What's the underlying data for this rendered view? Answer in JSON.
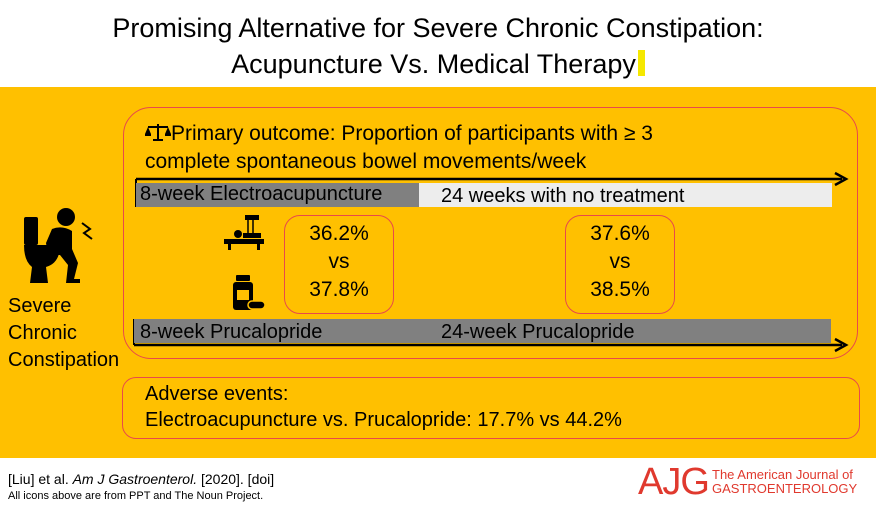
{
  "title": {
    "line1": "Promising Alternative for Severe Chronic Constipation:",
    "line2": "Acupuncture Vs. Medical Therapy"
  },
  "outcome": {
    "icon": "scales-icon",
    "line1": "Primary outcome: Proportion of participants with ≥ 3",
    "line2": "complete spontaneous bowel movements/week"
  },
  "electroacupuncture": {
    "label": "8-week Electroacupuncture",
    "rest": "24 weeks with no treatment"
  },
  "prucalopride": {
    "label": "8-week Prucalopride",
    "rest": "24-week Prucalopride"
  },
  "stats": [
    {
      "top": "36.2%",
      "mid": "vs",
      "bottom": "37.8%"
    },
    {
      "top": "37.6%",
      "mid": "vs",
      "bottom": "38.5%"
    }
  ],
  "adverse": {
    "line1": "Adverse events:",
    "line2": "Electroacupuncture vs. Prucalopride: 17.7% vs 44.2%"
  },
  "patient": {
    "line1": "Severe",
    "line2": "Chronic",
    "line3": "Constipation"
  },
  "footer": {
    "cite_a": "[Liu] et al. ",
    "cite_journal": "Am J Gastroenterol.",
    "cite_b": " [2020]. [doi]",
    "note": "All icons above are from PPT and The Noun Project."
  },
  "logo": {
    "abbr": "AJG",
    "name_line1": "The American Journal of",
    "name_line2": "GASTROENTEROLOGY"
  },
  "colors": {
    "panel": "#ffc000",
    "accent_red": "#e84a4a",
    "logo_red": "#e0392e"
  }
}
